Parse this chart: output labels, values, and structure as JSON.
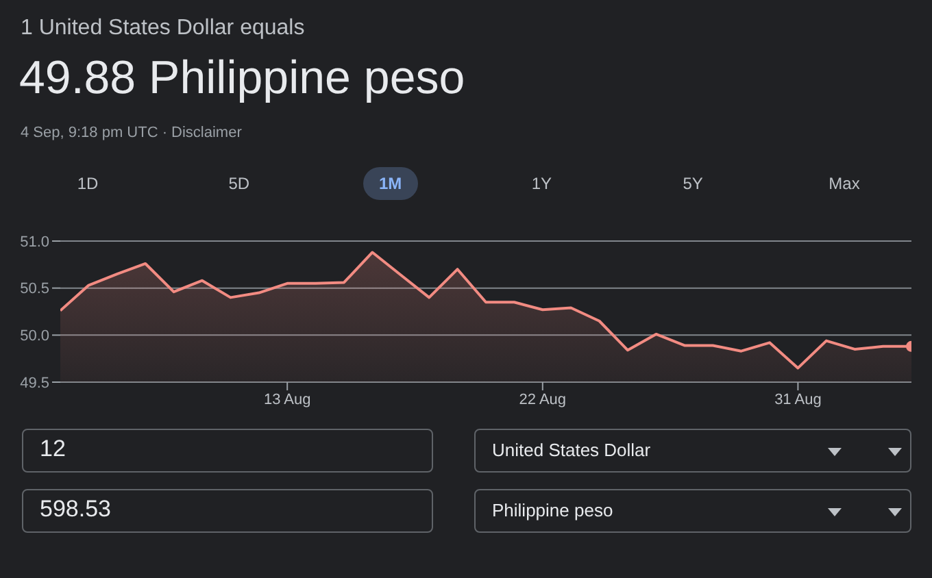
{
  "chart_data": {
    "type": "area",
    "title": "1 United States Dollar equals",
    "subtitle": "49.88 Philippine peso",
    "annotations": [
      "4 Sep, 9:18 pm UTC · Disclaimer",
      "1D",
      "5D",
      "1M",
      "1Y",
      "5Y",
      "Max",
      "12",
      "United States Dollar",
      "598.53",
      "Philippine peso"
    ],
    "x": [
      "--08-05",
      "--08-06",
      "--08-07",
      "--08-08",
      "--08-09",
      "--08-10",
      "--08-11",
      "--08-12",
      "--08-13",
      "--08-14",
      "--08-15",
      "--08-16",
      "--08-17",
      "--08-18",
      "--08-19",
      "--08-20",
      "--08-21",
      "--08-22",
      "--08-23",
      "--08-24",
      "--08-25",
      "--08-26",
      "--08-27",
      "--08-28",
      "--08-29",
      "--08-30",
      "--08-31",
      "--09-01",
      "--09-02",
      "--09-03",
      "--09-04"
    ],
    "series": [
      {
        "color": "#f28b82",
        "values": [
          50.26,
          50.53,
          50.65,
          50.76,
          50.46,
          50.58,
          50.4,
          50.45,
          50.55,
          50.55,
          50.56,
          50.88,
          50.64,
          50.4,
          50.7,
          50.35,
          50.35,
          50.27,
          50.29,
          50.15,
          49.84,
          50.01,
          49.89,
          49.89,
          49.83,
          49.92,
          49.65,
          49.94,
          49.85,
          49.88,
          49.88
        ]
      }
    ],
    "xlim": [
      "--08-05",
      "--09-04"
    ],
    "xticks": [
      {
        "value": "--08-13",
        "label": "13 Aug"
      },
      {
        "value": "--08-22",
        "label": "22 Aug"
      },
      {
        "value": "--08-31",
        "label": "31 Aug"
      }
    ],
    "ylim": [
      49.5,
      51.0
    ],
    "yticks": [
      {
        "value": 49.5,
        "label": "49.5"
      },
      {
        "value": 50,
        "label": "50.0"
      },
      {
        "value": 50.5,
        "label": "50.5"
      },
      {
        "value": 51,
        "label": "51.0"
      }
    ],
    "grid": "y",
    "legend": false
  }
}
